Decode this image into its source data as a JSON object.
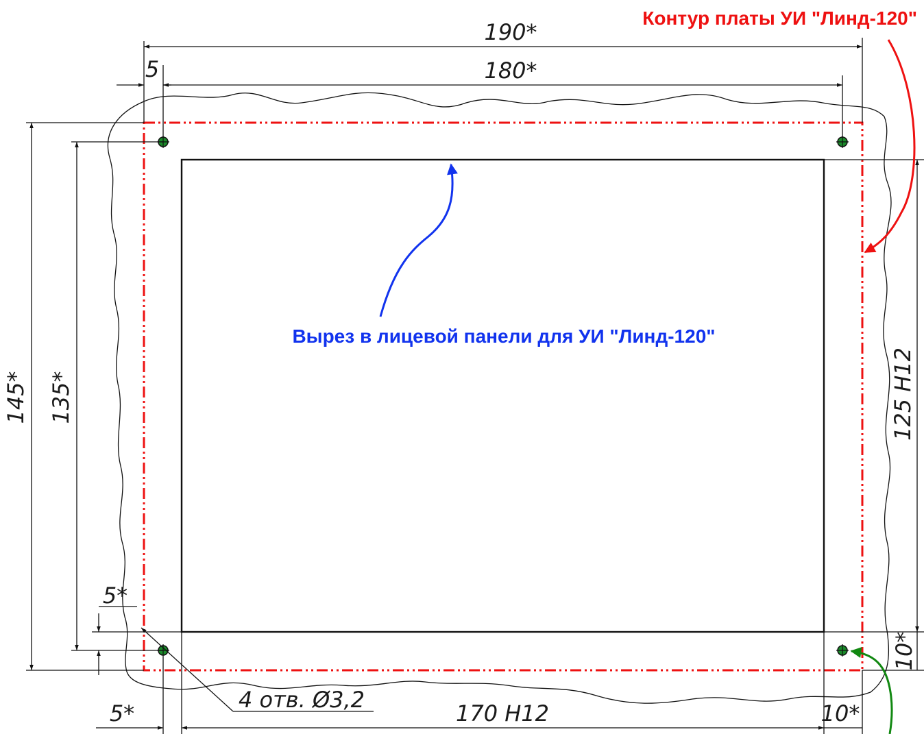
{
  "diagram": {
    "labels": {
      "pcb_outline_note": "Контур платы УИ \"Линд-120\"",
      "cutout_note": "Вырез в лицевой панели для УИ \"Линд-120\"",
      "holes_note": "4 отв. Ø3,2"
    },
    "dimensions": {
      "width_190": "190*",
      "width_180": "180*",
      "offset_5_top": "5",
      "height_145": "145*",
      "height_135": "135*",
      "offset_5_left": "5*",
      "offset_5_bottom": "5*",
      "width_170": "170 H12",
      "offset_10_bottom": "10*",
      "height_125": "125 H12",
      "offset_10_right": "10*"
    },
    "colors": {
      "pcb_outline": "#ee1111",
      "cutout_arrow": "#1133ee",
      "hole_arrow": "#118811",
      "hole_fill": "#1a8a2a",
      "lines": "#111111"
    }
  }
}
